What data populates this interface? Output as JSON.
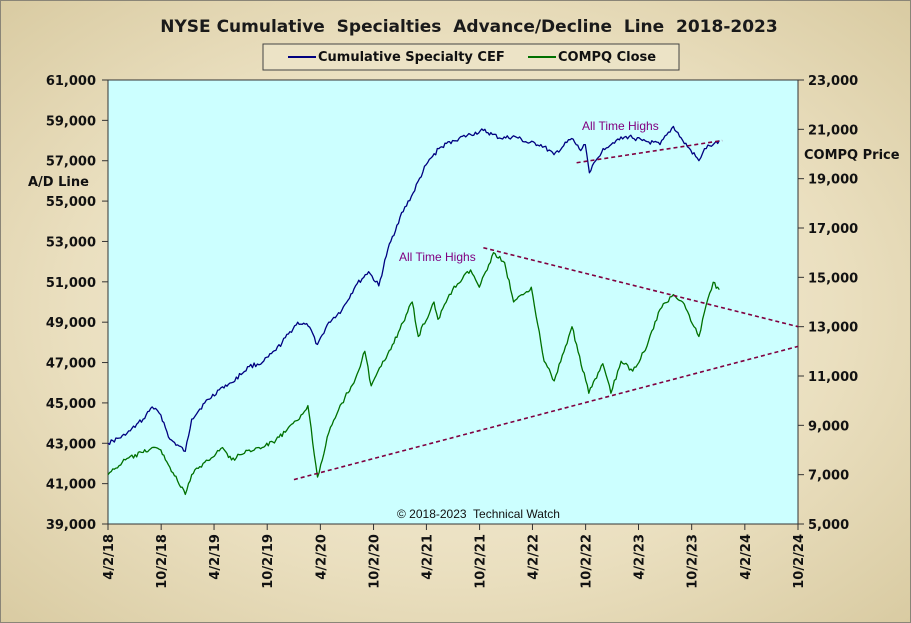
{
  "chart_data": {
    "type": "line",
    "title": "NYSE Cumulative  Specialties  Advance/Decline  Line  2018-2023",
    "legend": [
      {
        "name": "Cumulative Specialty CEF",
        "color": "#000080"
      },
      {
        "name": "COMPQ Close",
        "color": "#007000"
      }
    ],
    "legend_position": "top-center",
    "plot_background": "#ccffff",
    "grid": false,
    "y_left": {
      "label": "A/D Line",
      "ylim": [
        39000,
        61000
      ],
      "ticks": [
        39000,
        41000,
        43000,
        45000,
        47000,
        49000,
        51000,
        53000,
        55000,
        57000,
        59000,
        61000
      ],
      "tick_labels": [
        "39,000",
        "41,000",
        "43,000",
        "45,000",
        "47,000",
        "49,000",
        "51,000",
        "53,000",
        "55,000",
        "57,000",
        "59,000",
        "61,000"
      ]
    },
    "y_right": {
      "label": "COMPQ Price",
      "ylim": [
        5000,
        23000
      ],
      "ticks": [
        5000,
        7000,
        9000,
        11000,
        13000,
        15000,
        17000,
        19000,
        21000,
        23000
      ],
      "tick_labels": [
        "5,000",
        "7,000",
        "9,000",
        "11,000",
        "13,000",
        "15,000",
        "17,000",
        "19,000",
        "21,000",
        "23,000"
      ]
    },
    "x_axis": {
      "range": [
        "2018-04-02",
        "2024-10-02"
      ],
      "ticks": [
        "2018-04-02",
        "2018-10-02",
        "2019-04-02",
        "2019-10-02",
        "2020-04-02",
        "2020-10-02",
        "2021-04-02",
        "2021-10-02",
        "2022-04-02",
        "2022-10-02",
        "2023-04-02",
        "2023-10-02",
        "2024-04-02",
        "2024-10-02"
      ],
      "tick_labels": [
        "4/2/18",
        "10/2/18",
        "4/2/19",
        "10/2/19",
        "4/2/20",
        "10/2/20",
        "4/2/21",
        "10/2/21",
        "4/2/22",
        "10/2/22",
        "4/2/23",
        "10/2/23",
        "4/2/24",
        "10/2/24"
      ]
    },
    "series": [
      {
        "name": "Cumulative Specialty CEF",
        "axis": "left",
        "color": "#000080",
        "x": [
          "2018-04-02",
          "2018-06-01",
          "2018-08-01",
          "2018-09-01",
          "2018-10-01",
          "2018-11-01",
          "2018-12-24",
          "2019-01-15",
          "2019-03-01",
          "2019-05-01",
          "2019-06-01",
          "2019-08-01",
          "2019-09-15",
          "2019-11-01",
          "2020-01-15",
          "2020-02-20",
          "2020-03-23",
          "2020-05-01",
          "2020-06-15",
          "2020-08-01",
          "2020-09-15",
          "2020-10-20",
          "2020-11-20",
          "2021-01-01",
          "2021-02-15",
          "2021-04-01",
          "2021-05-15",
          "2021-07-01",
          "2021-09-01",
          "2021-10-15",
          "2021-11-15",
          "2021-12-15",
          "2022-02-01",
          "2022-03-15",
          "2022-05-01",
          "2022-06-15",
          "2022-08-15",
          "2022-09-15",
          "2022-10-01",
          "2022-10-15",
          "2022-12-01",
          "2023-01-15",
          "2023-03-01",
          "2023-04-15",
          "2023-06-15",
          "2023-07-31",
          "2023-09-01",
          "2023-10-27",
          "2023-11-15",
          "2023-12-15",
          "2024-01-05"
        ],
        "values": [
          43000,
          43400,
          44200,
          44800,
          44400,
          43200,
          42600,
          44200,
          45000,
          45800,
          46000,
          46800,
          47000,
          47600,
          49000,
          48800,
          47900,
          49000,
          49600,
          50800,
          51500,
          50800,
          52600,
          54200,
          55400,
          56800,
          57600,
          58000,
          58300,
          58500,
          58300,
          58100,
          58200,
          57900,
          57800,
          57300,
          58100,
          57500,
          57800,
          56400,
          57600,
          58000,
          58200,
          58000,
          57800,
          58700,
          58000,
          57000,
          57600,
          57800,
          58000
        ]
      },
      {
        "name": "COMPQ Close",
        "axis": "right",
        "color": "#007000",
        "x": [
          "2018-04-02",
          "2018-06-01",
          "2018-08-01",
          "2018-09-01",
          "2018-10-01",
          "2018-11-01",
          "2018-12-24",
          "2019-01-15",
          "2019-03-01",
          "2019-05-01",
          "2019-06-01",
          "2019-08-01",
          "2019-09-15",
          "2019-11-01",
          "2020-01-15",
          "2020-02-19",
          "2020-03-23",
          "2020-05-01",
          "2020-06-15",
          "2020-08-01",
          "2020-09-02",
          "2020-09-24",
          "2020-11-20",
          "2021-01-01",
          "2021-02-12",
          "2021-03-05",
          "2021-04-28",
          "2021-05-12",
          "2021-07-01",
          "2021-09-01",
          "2021-10-01",
          "2021-11-19",
          "2021-12-27",
          "2022-01-27",
          "2022-03-29",
          "2022-05-12",
          "2022-06-16",
          "2022-08-16",
          "2022-10-13",
          "2022-11-30",
          "2022-12-28",
          "2023-02-01",
          "2023-03-13",
          "2023-05-01",
          "2023-06-15",
          "2023-07-31",
          "2023-09-01",
          "2023-10-27",
          "2023-11-15",
          "2023-12-15",
          "2024-01-05"
        ],
        "values": [
          7000,
          7600,
          7900,
          8100,
          8000,
          7300,
          6200,
          7000,
          7500,
          8100,
          7600,
          8000,
          8100,
          8400,
          9200,
          9800,
          6900,
          8700,
          9900,
          10900,
          12000,
          10600,
          11900,
          12900,
          14000,
          12600,
          14000,
          13300,
          14500,
          15300,
          14600,
          16000,
          15600,
          14000,
          14600,
          11600,
          10800,
          13000,
          10300,
          11500,
          10300,
          11600,
          11200,
          12200,
          13700,
          14300,
          14000,
          12600,
          13600,
          14800,
          14500
        ]
      }
    ],
    "trendlines": [
      {
        "axis": "right",
        "from": [
          "2021-10-15",
          16200
        ],
        "to": [
          "2024-10-02",
          13000
        ],
        "color": "#800040",
        "style": "dashed"
      },
      {
        "axis": "right",
        "from": [
          "2020-01-02",
          6800
        ],
        "to": [
          "2024-10-02",
          12200
        ],
        "color": "#800040",
        "style": "dashed"
      },
      {
        "axis": "left",
        "from": [
          "2022-09-01",
          56900
        ],
        "to": [
          "2024-01-15",
          58000
        ],
        "color": "#800040",
        "style": "dashed"
      }
    ],
    "annotations": [
      {
        "text": "All Time Highs",
        "x": "2022-10-01",
        "y": 59700,
        "axis": "left",
        "color": "#800080"
      },
      {
        "text": "All Time Highs",
        "x": "2021-01-15",
        "y": 15200,
        "axis": "right",
        "color": "#800080"
      }
    ],
    "footer": "© 2018-2023  Technical Watch"
  }
}
